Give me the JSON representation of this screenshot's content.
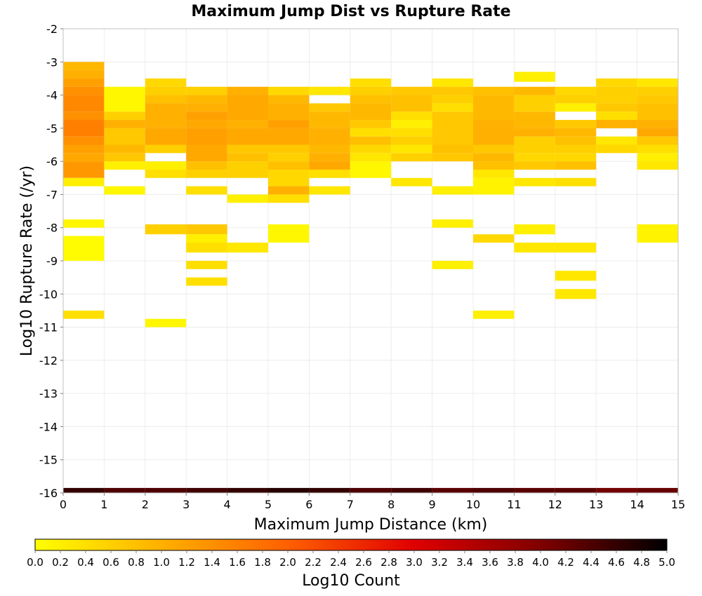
{
  "chart_data": {
    "type": "heatmap",
    "title": "Maximum Jump Dist vs Rupture Rate",
    "xlabel": "Maximum Jump Distance (km)",
    "ylabel": "Log10 Rupture Rate (/yr)",
    "xlim": [
      0,
      15
    ],
    "ylim": [
      -16,
      -2
    ],
    "x_ticks": [
      "0",
      "1",
      "2",
      "3",
      "4",
      "5",
      "6",
      "7",
      "8",
      "9",
      "10",
      "11",
      "12",
      "13",
      "14",
      "15"
    ],
    "y_ticks": [
      "-2",
      "-3",
      "-4",
      "-5",
      "-6",
      "-7",
      "-8",
      "-9",
      "-10",
      "-11",
      "-12",
      "-13",
      "-14",
      "-15",
      "-16"
    ],
    "grid": true,
    "x_bin_width": 1,
    "y_bin_height": 0.25,
    "colorbar": {
      "label": "Log10 Count",
      "range": [
        0,
        5
      ],
      "ticks": [
        "0.0",
        "0.2",
        "0.4",
        "0.6",
        "0.8",
        "1.0",
        "1.2",
        "1.4",
        "1.6",
        "1.8",
        "2.0",
        "2.2",
        "2.4",
        "2.6",
        "2.8",
        "3.0",
        "3.2",
        "3.4",
        "3.6",
        "3.8",
        "4.0",
        "4.2",
        "4.4",
        "4.6",
        "4.8",
        "5.0"
      ],
      "colors": [
        "#ffff00",
        "#ffb000",
        "#ff6000",
        "#e00000",
        "#800000",
        "#000000"
      ]
    },
    "columns": [
      {
        "x": 0,
        "cells": [
          {
            "y0": -3.0,
            "y1": -3.25,
            "v": 0.9
          },
          {
            "y0": -3.25,
            "y1": -3.5,
            "v": 1.0
          },
          {
            "y0": -3.5,
            "y1": -3.75,
            "v": 1.2
          },
          {
            "y0": -3.75,
            "y1": -4.0,
            "v": 1.4
          },
          {
            "y0": -4.0,
            "y1": -4.5,
            "v": 1.5
          },
          {
            "y0": -4.5,
            "y1": -4.75,
            "v": 1.4
          },
          {
            "y0": -4.75,
            "y1": -5.25,
            "v": 1.6
          },
          {
            "y0": -5.25,
            "y1": -5.5,
            "v": 1.4
          },
          {
            "y0": -5.5,
            "y1": -5.75,
            "v": 1.2
          },
          {
            "y0": -5.75,
            "y1": -6.0,
            "v": 1.1
          },
          {
            "y0": -6.0,
            "y1": -6.5,
            "v": 1.3
          },
          {
            "y0": -6.5,
            "y1": -6.75,
            "v": 0.2
          },
          {
            "y0": -7.75,
            "y1": -8.0,
            "v": 0.1
          },
          {
            "y0": -8.25,
            "y1": -9.0,
            "v": 0.05
          },
          {
            "y0": -10.5,
            "y1": -10.75,
            "v": 0.4
          }
        ]
      },
      {
        "x": 1,
        "cells": [
          {
            "y0": -3.75,
            "y1": -4.5,
            "v": 0.1
          },
          {
            "y0": -4.5,
            "y1": -4.75,
            "v": 0.6
          },
          {
            "y0": -4.75,
            "y1": -5.0,
            "v": 1.0
          },
          {
            "y0": -5.0,
            "y1": -5.5,
            "v": 0.7
          },
          {
            "y0": -5.5,
            "y1": -5.75,
            "v": 0.9
          },
          {
            "y0": -5.75,
            "y1": -6.0,
            "v": 0.7
          },
          {
            "y0": -6.0,
            "y1": -6.25,
            "v": 0.2
          },
          {
            "y0": -6.75,
            "y1": -7.0,
            "v": 0.1
          }
        ]
      },
      {
        "x": 2,
        "cells": [
          {
            "y0": -3.5,
            "y1": -3.75,
            "v": 0.5
          },
          {
            "y0": -3.75,
            "y1": -4.0,
            "v": 0.6
          },
          {
            "y0": -4.0,
            "y1": -4.25,
            "v": 0.8
          },
          {
            "y0": -4.25,
            "y1": -5.0,
            "v": 1.0
          },
          {
            "y0": -5.0,
            "y1": -5.5,
            "v": 1.1
          },
          {
            "y0": -5.5,
            "y1": -5.75,
            "v": 0.6
          },
          {
            "y0": -6.0,
            "y1": -6.25,
            "v": 0.2
          },
          {
            "y0": -6.25,
            "y1": -6.5,
            "v": 0.4
          },
          {
            "y0": -7.9,
            "y1": -8.2,
            "v": 0.6
          },
          {
            "y0": -10.75,
            "y1": -11.0,
            "v": 0.1
          }
        ]
      },
      {
        "x": 3,
        "cells": [
          {
            "y0": -3.75,
            "y1": -4.0,
            "v": 0.6
          },
          {
            "y0": -4.0,
            "y1": -4.25,
            "v": 0.9
          },
          {
            "y0": -4.25,
            "y1": -4.5,
            "v": 1.0
          },
          {
            "y0": -4.5,
            "y1": -4.75,
            "v": 1.2
          },
          {
            "y0": -4.75,
            "y1": -5.0,
            "v": 1.1
          },
          {
            "y0": -5.0,
            "y1": -5.5,
            "v": 1.2
          },
          {
            "y0": -5.5,
            "y1": -6.0,
            "v": 1.1
          },
          {
            "y0": -6.0,
            "y1": -6.25,
            "v": 0.8
          },
          {
            "y0": -6.25,
            "y1": -6.5,
            "v": 0.6
          },
          {
            "y0": -6.75,
            "y1": -7.0,
            "v": 0.4
          },
          {
            "y0": -7.9,
            "y1": -8.2,
            "v": 0.7
          },
          {
            "y0": -8.2,
            "y1": -8.45,
            "v": 0.2
          },
          {
            "y0": -8.45,
            "y1": -8.75,
            "v": 0.4
          },
          {
            "y0": -9.0,
            "y1": -9.25,
            "v": 0.4
          },
          {
            "y0": -9.5,
            "y1": -9.75,
            "v": 0.4
          }
        ]
      },
      {
        "x": 4,
        "cells": [
          {
            "y0": -3.75,
            "y1": -4.0,
            "v": 1.0
          },
          {
            "y0": -4.0,
            "y1": -4.75,
            "v": 1.1
          },
          {
            "y0": -4.75,
            "y1": -5.0,
            "v": 1.0
          },
          {
            "y0": -5.0,
            "y1": -5.5,
            "v": 1.1
          },
          {
            "y0": -5.5,
            "y1": -5.75,
            "v": 0.7
          },
          {
            "y0": -5.75,
            "y1": -6.0,
            "v": 0.8
          },
          {
            "y0": -6.0,
            "y1": -6.5,
            "v": 0.6
          },
          {
            "y0": -7.0,
            "y1": -7.25,
            "v": 0.2
          },
          {
            "y0": -8.45,
            "y1": -8.75,
            "v": 0.3
          }
        ]
      },
      {
        "x": 5,
        "cells": [
          {
            "y0": -3.75,
            "y1": -4.0,
            "v": 0.5
          },
          {
            "y0": -4.0,
            "y1": -4.25,
            "v": 0.9
          },
          {
            "y0": -4.25,
            "y1": -4.75,
            "v": 1.0
          },
          {
            "y0": -4.75,
            "y1": -5.0,
            "v": 1.2
          },
          {
            "y0": -5.0,
            "y1": -5.5,
            "v": 1.1
          },
          {
            "y0": -5.5,
            "y1": -5.75,
            "v": 0.7
          },
          {
            "y0": -5.75,
            "y1": -6.0,
            "v": 0.6
          },
          {
            "y0": -6.0,
            "y1": -6.25,
            "v": 0.8
          },
          {
            "y0": -6.25,
            "y1": -6.75,
            "v": 0.5
          },
          {
            "y0": -6.75,
            "y1": -7.0,
            "v": 1.0
          },
          {
            "y0": -7.0,
            "y1": -7.25,
            "v": 0.4
          },
          {
            "y0": -7.9,
            "y1": -8.45,
            "v": 0.1
          }
        ]
      },
      {
        "x": 6,
        "cells": [
          {
            "y0": -3.75,
            "y1": -4.0,
            "v": 0.3
          },
          {
            "y0": -4.25,
            "y1": -4.5,
            "v": 0.7
          },
          {
            "y0": -4.5,
            "y1": -5.0,
            "v": 0.9
          },
          {
            "y0": -5.0,
            "y1": -5.5,
            "v": 1.0
          },
          {
            "y0": -5.5,
            "y1": -5.75,
            "v": 0.9
          },
          {
            "y0": -5.75,
            "y1": -6.0,
            "v": 1.0
          },
          {
            "y0": -6.0,
            "y1": -6.25,
            "v": 1.1
          },
          {
            "y0": -6.25,
            "y1": -6.5,
            "v": 0.4
          },
          {
            "y0": -6.75,
            "y1": -7.0,
            "v": 0.3
          }
        ]
      },
      {
        "x": 7,
        "cells": [
          {
            "y0": -3.5,
            "y1": -3.75,
            "v": 0.4
          },
          {
            "y0": -3.75,
            "y1": -4.0,
            "v": 0.6
          },
          {
            "y0": -4.0,
            "y1": -4.25,
            "v": 0.8
          },
          {
            "y0": -4.25,
            "y1": -4.75,
            "v": 0.9
          },
          {
            "y0": -4.75,
            "y1": -5.0,
            "v": 0.7
          },
          {
            "y0": -5.0,
            "y1": -5.25,
            "v": 0.4
          },
          {
            "y0": -5.25,
            "y1": -5.5,
            "v": 0.8
          },
          {
            "y0": -5.5,
            "y1": -5.75,
            "v": 0.5
          },
          {
            "y0": -5.75,
            "y1": -6.0,
            "v": 0.3
          },
          {
            "y0": -6.0,
            "y1": -6.5,
            "v": 0.1
          }
        ]
      },
      {
        "x": 8,
        "cells": [
          {
            "y0": -3.75,
            "y1": -4.0,
            "v": 0.7
          },
          {
            "y0": -4.0,
            "y1": -4.5,
            "v": 0.8
          },
          {
            "y0": -4.5,
            "y1": -4.75,
            "v": 0.4
          },
          {
            "y0": -4.75,
            "y1": -5.0,
            "v": 0.2
          },
          {
            "y0": -5.0,
            "y1": -5.25,
            "v": 0.4
          },
          {
            "y0": -5.25,
            "y1": -5.5,
            "v": 0.6
          },
          {
            "y0": -5.5,
            "y1": -5.75,
            "v": 0.3
          },
          {
            "y0": -5.75,
            "y1": -6.0,
            "v": 0.6
          },
          {
            "y0": -6.5,
            "y1": -6.75,
            "v": 0.3
          }
        ]
      },
      {
        "x": 9,
        "cells": [
          {
            "y0": -3.5,
            "y1": -3.75,
            "v": 0.3
          },
          {
            "y0": -3.75,
            "y1": -4.0,
            "v": 0.7
          },
          {
            "y0": -4.0,
            "y1": -4.25,
            "v": 0.6
          },
          {
            "y0": -4.25,
            "y1": -4.5,
            "v": 0.4
          },
          {
            "y0": -4.5,
            "y1": -5.5,
            "v": 0.7
          },
          {
            "y0": -5.5,
            "y1": -5.75,
            "v": 0.8
          },
          {
            "y0": -5.75,
            "y1": -6.0,
            "v": 0.7
          },
          {
            "y0": -6.75,
            "y1": -7.0,
            "v": 0.2
          },
          {
            "y0": -7.75,
            "y1": -8.0,
            "v": 0.2
          },
          {
            "y0": -9.0,
            "y1": -9.25,
            "v": 0.2
          }
        ]
      },
      {
        "x": 10,
        "cells": [
          {
            "y0": -3.75,
            "y1": -4.0,
            "v": 0.8
          },
          {
            "y0": -4.0,
            "y1": -4.75,
            "v": 0.9
          },
          {
            "y0": -4.75,
            "y1": -5.5,
            "v": 1.0
          },
          {
            "y0": -5.5,
            "y1": -5.75,
            "v": 0.7
          },
          {
            "y0": -5.75,
            "y1": -6.0,
            "v": 0.9
          },
          {
            "y0": -6.0,
            "y1": -6.25,
            "v": 0.8
          },
          {
            "y0": -6.25,
            "y1": -6.5,
            "v": 0.3
          },
          {
            "y0": -6.5,
            "y1": -7.0,
            "v": 0.15
          },
          {
            "y0": -8.2,
            "y1": -8.45,
            "v": 0.5
          },
          {
            "y0": -10.5,
            "y1": -10.75,
            "v": 0.2
          }
        ]
      },
      {
        "x": 11,
        "cells": [
          {
            "y0": -3.3,
            "y1": -3.6,
            "v": 0.2
          },
          {
            "y0": -3.75,
            "y1": -4.0,
            "v": 0.9
          },
          {
            "y0": -4.0,
            "y1": -4.5,
            "v": 0.6
          },
          {
            "y0": -4.5,
            "y1": -5.0,
            "v": 0.9
          },
          {
            "y0": -5.0,
            "y1": -5.25,
            "v": 1.0
          },
          {
            "y0": -5.25,
            "y1": -5.75,
            "v": 0.6
          },
          {
            "y0": -5.75,
            "y1": -6.0,
            "v": 0.5
          },
          {
            "y0": -6.0,
            "y1": -6.25,
            "v": 0.7
          },
          {
            "y0": -6.5,
            "y1": -6.75,
            "v": 0.3
          },
          {
            "y0": -7.9,
            "y1": -8.2,
            "v": 0.2
          },
          {
            "y0": -8.45,
            "y1": -8.75,
            "v": 0.3
          }
        ]
      },
      {
        "x": 12,
        "cells": [
          {
            "y0": -3.75,
            "y1": -4.0,
            "v": 0.5
          },
          {
            "y0": -4.0,
            "y1": -4.25,
            "v": 0.6
          },
          {
            "y0": -4.25,
            "y1": -4.5,
            "v": 0.2
          },
          {
            "y0": -4.75,
            "y1": -5.0,
            "v": 0.7
          },
          {
            "y0": -5.0,
            "y1": -5.25,
            "v": 0.9
          },
          {
            "y0": -5.25,
            "y1": -5.5,
            "v": 0.8
          },
          {
            "y0": -5.5,
            "y1": -5.75,
            "v": 0.6
          },
          {
            "y0": -5.75,
            "y1": -6.0,
            "v": 0.5
          },
          {
            "y0": -6.0,
            "y1": -6.25,
            "v": 0.8
          },
          {
            "y0": -6.5,
            "y1": -6.75,
            "v": 0.4
          },
          {
            "y0": -8.45,
            "y1": -8.75,
            "v": 0.3
          },
          {
            "y0": -9.3,
            "y1": -9.6,
            "v": 0.3
          },
          {
            "y0": -9.85,
            "y1": -10.15,
            "v": 0.3
          }
        ]
      },
      {
        "x": 13,
        "cells": [
          {
            "y0": -3.5,
            "y1": -3.75,
            "v": 0.5
          },
          {
            "y0": -3.75,
            "y1": -4.25,
            "v": 0.6
          },
          {
            "y0": -4.25,
            "y1": -4.5,
            "v": 0.7
          },
          {
            "y0": -4.5,
            "y1": -4.75,
            "v": 0.4
          },
          {
            "y0": -4.75,
            "y1": -5.0,
            "v": 1.0
          },
          {
            "y0": -5.25,
            "y1": -5.5,
            "v": 0.3
          },
          {
            "y0": -5.5,
            "y1": -5.75,
            "v": 0.5
          }
        ]
      },
      {
        "x": 14,
        "cells": [
          {
            "y0": -3.5,
            "y1": -3.75,
            "v": 0.3
          },
          {
            "y0": -3.75,
            "y1": -4.0,
            "v": 0.6
          },
          {
            "y0": -4.0,
            "y1": -4.25,
            "v": 0.7
          },
          {
            "y0": -4.25,
            "y1": -4.75,
            "v": 0.8
          },
          {
            "y0": -4.75,
            "y1": -5.0,
            "v": 1.0
          },
          {
            "y0": -5.0,
            "y1": -5.25,
            "v": 1.1
          },
          {
            "y0": -5.25,
            "y1": -5.5,
            "v": 0.7
          },
          {
            "y0": -5.5,
            "y1": -5.75,
            "v": 0.4
          },
          {
            "y0": -5.75,
            "y1": -6.0,
            "v": 0.2
          },
          {
            "y0": -6.0,
            "y1": -6.25,
            "v": 0.3
          },
          {
            "y0": -7.9,
            "y1": -8.45,
            "v": 0.15
          }
        ]
      }
    ],
    "bottom_row": {
      "y0": -15.85,
      "y1": -16.0,
      "values": [
        4.6,
        4.4,
        4.4,
        4.5,
        4.6,
        4.7,
        4.6,
        4.4,
        4.5,
        4.3,
        4.4,
        4.3,
        4.3,
        4.1,
        4.2
      ]
    }
  }
}
